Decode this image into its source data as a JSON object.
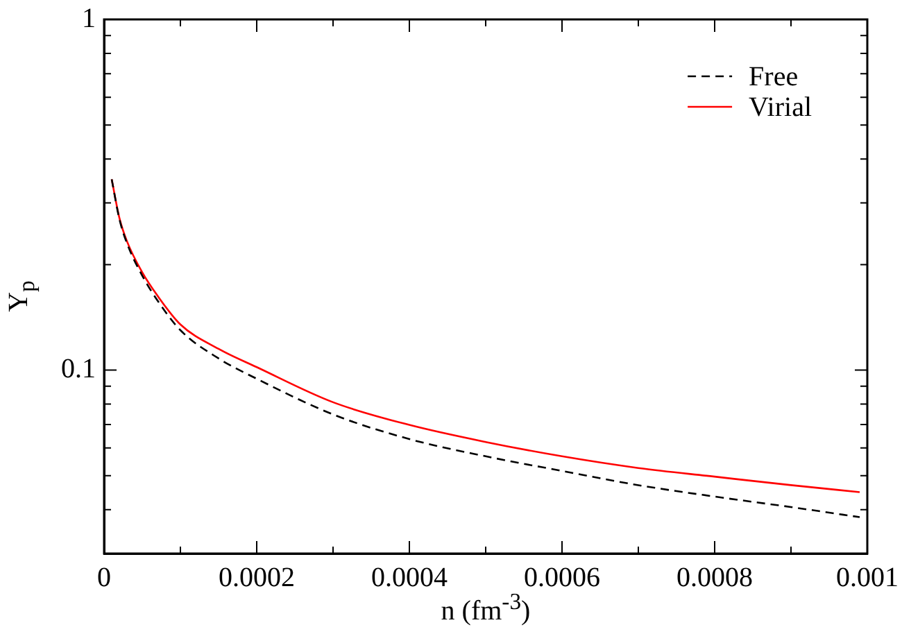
{
  "chart_data": {
    "type": "line",
    "xlabel": "n (fm$^{-3}$)",
    "ylabel": "Y$_{p}$",
    "log": "y",
    "legend": "top right",
    "grid": false,
    "xlim": [
      0,
      0.001
    ],
    "xticks": [
      0,
      {
        "value": 0.0001,
        "label": null
      },
      0.0002,
      {
        "value": 0.0003,
        "label": null
      },
      0.0004,
      {
        "value": 0.0005,
        "label": null
      },
      0.0006,
      {
        "value": 0.0007,
        "label": null
      },
      0.0008,
      {
        "value": 0.0009,
        "label": null
      },
      0.001
    ],
    "ylim": [
      0.03,
      1
    ],
    "yticks": [
      {
        "value": 0.03,
        "label": null
      },
      {
        "value": 0.04,
        "label": null
      },
      {
        "value": 0.05,
        "label": null
      },
      {
        "value": 0.06,
        "label": null
      },
      {
        "value": 0.07,
        "label": null
      },
      {
        "value": 0.08,
        "label": null
      },
      {
        "value": 0.09,
        "label": null
      },
      0.1,
      {
        "value": 0.2,
        "label": null
      },
      {
        "value": 0.3,
        "label": null
      },
      {
        "value": 0.4,
        "label": null
      },
      {
        "value": 0.5,
        "label": null
      },
      {
        "value": 0.6,
        "label": null
      },
      {
        "value": 0.7,
        "label": null
      },
      {
        "value": 0.8,
        "label": null
      },
      {
        "value": 0.9,
        "label": null
      },
      1
    ],
    "x": [
      1e-05,
      2e-05,
      3e-05,
      5e-05,
      7e-05,
      0.0001,
      0.00015,
      0.0002,
      0.0003,
      0.0004,
      0.0005,
      0.0006,
      0.0007,
      0.0008,
      0.0009,
      0.00099
    ],
    "series": [
      {
        "name": "Free",
        "color": "#000000",
        "line_style": "dashed",
        "values": [
          0.35,
          0.27,
          0.23,
          0.186,
          0.158,
          0.13,
          0.108,
          0.0945,
          0.0748,
          0.0636,
          0.0568,
          0.0516,
          0.047,
          0.0436,
          0.0407,
          0.0381
        ]
      },
      {
        "name": "Virial",
        "color": "#ff0000",
        "line_style": "solid",
        "values": [
          0.35,
          0.272,
          0.233,
          0.19,
          0.163,
          0.135,
          0.115,
          0.102,
          0.081,
          0.0698,
          0.0624,
          0.0568,
          0.0526,
          0.0497,
          0.047,
          0.0449
        ]
      }
    ]
  }
}
